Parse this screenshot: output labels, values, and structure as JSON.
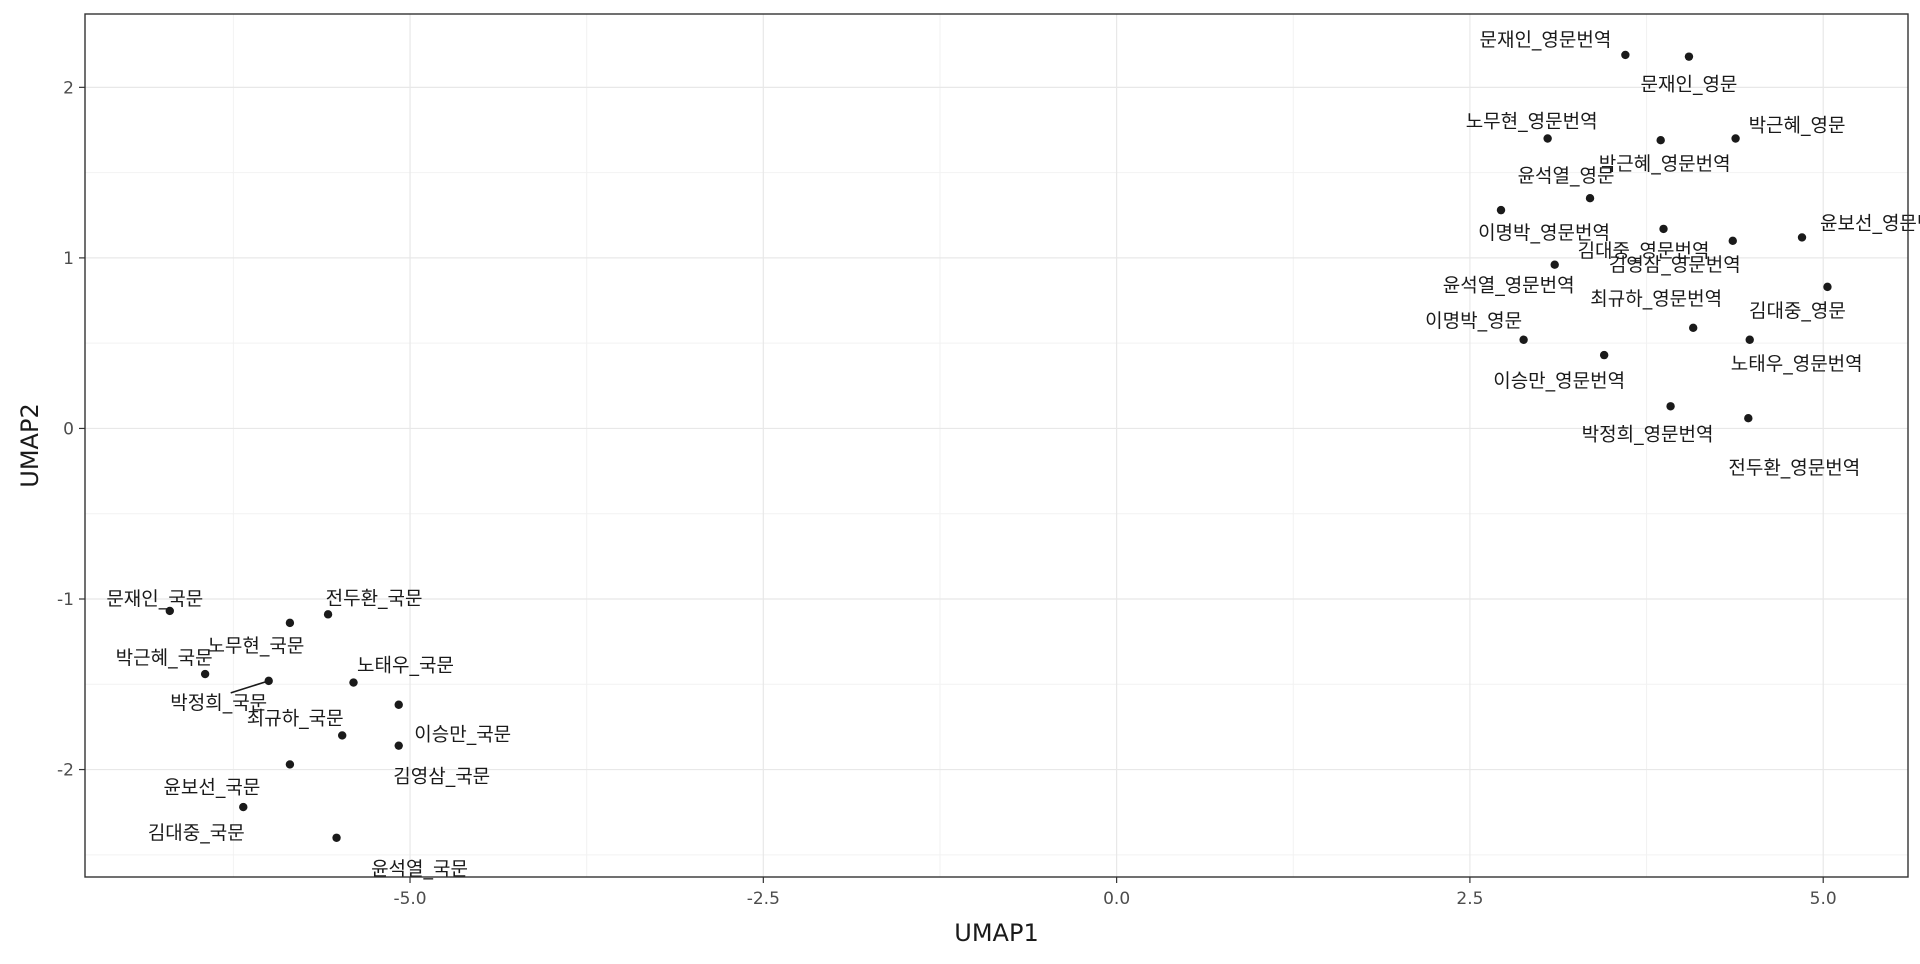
{
  "chart_data": {
    "type": "scatter",
    "title": "",
    "xlabel": "UMAP1",
    "ylabel": "UMAP2",
    "xlim": [
      -7.3,
      5.6
    ],
    "ylim": [
      -2.63,
      2.43
    ],
    "x_ticks": [
      -5.0,
      -2.5,
      0.0,
      2.5,
      5.0
    ],
    "x_tick_labels": [
      "-5.0",
      "-2.5",
      "0.0",
      "2.5",
      "5.0"
    ],
    "y_ticks": [
      -2,
      -1,
      0,
      1,
      2
    ],
    "y_tick_labels": [
      "-2",
      "-1",
      "0",
      "1",
      "2"
    ],
    "grid": true,
    "points": [
      {
        "label": "문재인_영문번역",
        "x": 3.6,
        "y": 2.19
      },
      {
        "label": "문재인_영문",
        "x": 4.05,
        "y": 2.18
      },
      {
        "label": "노무현_영문번역",
        "x": 3.05,
        "y": 1.7
      },
      {
        "label": "박근혜_영문번역",
        "x": 3.85,
        "y": 1.69
      },
      {
        "label": "박근혜_영문",
        "x": 4.38,
        "y": 1.7
      },
      {
        "label": "윤석열_영문",
        "x": 3.35,
        "y": 1.35
      },
      {
        "label": "이명박_영문번역",
        "x": 2.72,
        "y": 1.28
      },
      {
        "label": "김대중_영문번역",
        "x": 3.87,
        "y": 1.17
      },
      {
        "label": "윤보선_영문번역",
        "x": 4.85,
        "y": 1.12
      },
      {
        "label": "김영삼_영문번역",
        "x": 4.36,
        "y": 1.1
      },
      {
        "label": "윤석열_영문번역",
        "x": 3.1,
        "y": 0.96
      },
      {
        "label": "김대중_영문",
        "x": 5.03,
        "y": 0.83
      },
      {
        "label": "최규하_영문번역",
        "x": 4.08,
        "y": 0.59
      },
      {
        "label": "이명박_영문",
        "x": 2.88,
        "y": 0.52
      },
      {
        "label": "노태우_영문번역",
        "x": 4.48,
        "y": 0.52
      },
      {
        "label": "이승만_영문번역",
        "x": 3.45,
        "y": 0.43
      },
      {
        "label": "박정희_영문번역",
        "x": 3.92,
        "y": 0.13
      },
      {
        "label": "전두환_영문번역",
        "x": 4.47,
        "y": 0.06
      },
      {
        "label": "문재인_국문",
        "x": -6.7,
        "y": -1.07
      },
      {
        "label": "전두환_국문",
        "x": -5.58,
        "y": -1.09
      },
      {
        "label": "노무현_국문",
        "x": -5.85,
        "y": -1.14
      },
      {
        "label": "박근혜_국문",
        "x": -6.45,
        "y": -1.44
      },
      {
        "label": "박정희_국문",
        "x": -6.0,
        "y": -1.48
      },
      {
        "label": "노태우_국문",
        "x": -5.4,
        "y": -1.49
      },
      {
        "label": "이승만_국문",
        "x": -5.08,
        "y": -1.62
      },
      {
        "label": "최규하_국문",
        "x": -5.48,
        "y": -1.8
      },
      {
        "label": "김영삼_국문",
        "x": -5.08,
        "y": -1.86
      },
      {
        "label": "윤보선_국문",
        "x": -5.85,
        "y": -1.97
      },
      {
        "label": "김대중_국문",
        "x": -6.18,
        "y": -2.22
      },
      {
        "label": "윤석열_국문",
        "x": -5.52,
        "y": -2.4
      }
    ]
  }
}
